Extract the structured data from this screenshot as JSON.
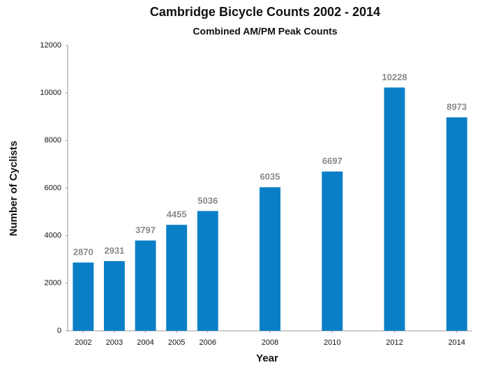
{
  "chart_data": {
    "type": "bar",
    "title": "Cambridge Bicycle Counts 2002 - 2014",
    "subtitle": "Combined AM/PM Peak Counts",
    "x_label": "Year",
    "y_label": "Number of Cyclists",
    "x": [
      2002,
      2003,
      2004,
      2005,
      2006,
      2008,
      2010,
      2012,
      2014
    ],
    "values": [
      2870,
      2931,
      3797,
      4455,
      5036,
      6035,
      6697,
      10228,
      8973
    ],
    "color": "#0a7fc7",
    "xlim": [
      2001.5,
      2014.5
    ],
    "xticks": [
      2002,
      2003,
      2004,
      2005,
      2006,
      2008,
      2010,
      2012,
      2014
    ],
    "ylim": [
      0,
      12000
    ],
    "yticks": [
      0,
      2000,
      4000,
      6000,
      8000,
      10000,
      12000
    ],
    "grid": false
  }
}
